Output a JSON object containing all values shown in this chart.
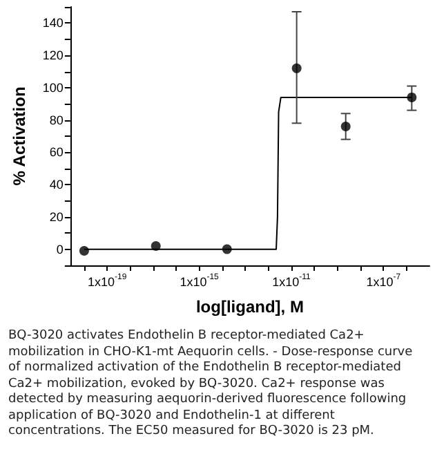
{
  "chart_data": {
    "type": "scatter",
    "xlabel": "log[ligand], M",
    "ylabel": "% Activation",
    "log": "x",
    "grid": false,
    "xlim": [
      2.5e-21,
      1e-05
    ],
    "xticks": [
      {
        "value": 1e-20,
        "label": null
      },
      {
        "value": 1e-19,
        "label": "1x10$^{-19}$"
      },
      {
        "value": 1e-18,
        "label": null
      },
      {
        "value": 1e-17,
        "label": null
      },
      {
        "value": 1e-16,
        "label": null
      },
      {
        "value": 1e-15,
        "label": "1x10$^{-15}$"
      },
      {
        "value": 1e-14,
        "label": null
      },
      {
        "value": 1e-13,
        "label": null
      },
      {
        "value": 1e-12,
        "label": null
      },
      {
        "value": 1e-11,
        "label": "1x10$^{-11}$"
      },
      {
        "value": 1e-10,
        "label": null
      },
      {
        "value": 1e-09,
        "label": null
      },
      {
        "value": 1e-08,
        "label": null
      },
      {
        "value": 1e-07,
        "label": "1x10$^{-7}$"
      },
      {
        "value": 1e-06,
        "label": null
      }
    ],
    "ylim": [
      -10,
      150
    ],
    "yticks": [
      {
        "value": -10,
        "label": null
      },
      0,
      {
        "value": 10,
        "label": null
      },
      20,
      {
        "value": 30,
        "label": null
      },
      40,
      {
        "value": 50,
        "label": null
      },
      60,
      {
        "value": 70,
        "label": null
      },
      80,
      {
        "value": 90,
        "label": null
      },
      100,
      {
        "value": 110,
        "label": null
      },
      120,
      {
        "value": 130,
        "label": null
      },
      140,
      {
        "value": 150,
        "label": null
      }
    ],
    "series": [
      {
        "color": "#000000",
        "marker": "circle",
        "x": [
          1e-20,
          1.3e-17,
          1.6e-14,
          1.7e-11,
          2.3e-09,
          1.7e-06
        ],
        "values": [
          -1,
          2,
          0,
          112,
          76,
          94
        ],
        "errors": [
          null,
          null,
          null,
          [
            78,
            147
          ],
          [
            68,
            84
          ],
          [
            86,
            101
          ]
        ]
      },
      {
        "type": "line",
        "color": "#000000",
        "marker": "none",
        "line_style": "solid",
        "x": [
          1e-20,
          2.2e-12,
          2.5e-12,
          2.8e-12,
          3.5e-12,
          1.7e-06
        ],
        "values": [
          0,
          0,
          20,
          85,
          94,
          94
        ]
      }
    ],
    "annotations": [
      "BQ-3020 activates Endothelin B receptor-mediated Ca2+ mobilization in CHO-K1-mt Aequorin cells. - Dose-response curve of normalized activation of the Endothelin B receptor-mediated Ca2+ mobilization, evoked by BQ-3020. Ca2+ response was detected by measuring aequorin-derived fluorescence following application of BQ-3020 and Endothelin-1 at different concentrations. The EC50 measured for BQ-3020 is 23 pM."
    ]
  }
}
